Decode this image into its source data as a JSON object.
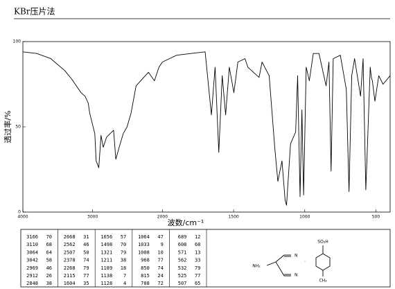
{
  "chart_data": {
    "type": "line",
    "title": "KBr压片法",
    "xlabel": "波数/cm⁻¹",
    "ylabel": "透过率/%",
    "xlim": [
      4000,
      400
    ],
    "x_scale_break": 2000,
    "xticks": [
      4000,
      3000,
      2000,
      1500,
      1000,
      500
    ],
    "ylim": [
      0,
      100
    ],
    "yticks": [
      0,
      50,
      100
    ],
    "color": "#000000",
    "x": [
      4000,
      3800,
      3600,
      3400,
      3300,
      3200,
      3166,
      3110,
      3064,
      3042,
      2969,
      2950,
      2912,
      2880,
      2848,
      2800,
      2700,
      2668,
      2620,
      2562,
      2507,
      2450,
      2378,
      2268,
      2200,
      2115,
      2050,
      2000,
      1900,
      1800,
      1700,
      1656,
      1630,
      1604,
      1580,
      1556,
      1530,
      1498,
      1470,
      1420,
      1400,
      1321,
      1300,
      1250,
      1211,
      1189,
      1160,
      1138,
      1128,
      1100,
      1064,
      1050,
      1033,
      1020,
      1008,
      990,
      968,
      940,
      900,
      850,
      830,
      815,
      800,
      750,
      708,
      689,
      670,
      650,
      608,
      590,
      571,
      562,
      540,
      532,
      525,
      507,
      480,
      450,
      420,
      400
    ],
    "values": [
      94,
      93,
      90,
      83,
      78,
      72,
      70,
      68,
      64,
      58,
      46,
      30,
      26,
      45,
      38,
      44,
      48,
      31,
      38,
      46,
      50,
      58,
      74,
      79,
      82,
      77,
      85,
      88,
      92,
      93,
      94,
      57,
      85,
      35,
      80,
      57,
      85,
      70,
      88,
      90,
      85,
      79,
      88,
      80,
      38,
      18,
      30,
      7,
      4,
      40,
      47,
      80,
      9,
      60,
      10,
      85,
      77,
      93,
      93,
      74,
      88,
      24,
      90,
      92,
      72,
      12,
      80,
      90,
      68,
      90,
      13,
      33,
      85,
      79,
      77,
      65,
      80,
      75,
      78,
      80
    ]
  },
  "peak_table": {
    "columns": [
      [
        [
          3166,
          70
        ],
        [
          3110,
          68
        ],
        [
          3064,
          64
        ],
        [
          3042,
          58
        ],
        [
          2969,
          46
        ],
        [
          2912,
          26
        ],
        [
          2848,
          38
        ]
      ],
      [
        [
          2668,
          31
        ],
        [
          2562,
          46
        ],
        [
          2507,
          50
        ],
        [
          2378,
          74
        ],
        [
          2268,
          79
        ],
        [
          2115,
          77
        ],
        [
          1604,
          35
        ]
      ],
      [
        [
          1656,
          57
        ],
        [
          1498,
          70
        ],
        [
          1321,
          79
        ],
        [
          1211,
          38
        ],
        [
          1189,
          18
        ],
        [
          1138,
          7
        ],
        [
          1128,
          4
        ]
      ],
      [
        [
          1064,
          47
        ],
        [
          1033,
          9
        ],
        [
          1008,
          10
        ],
        [
          968,
          77
        ],
        [
          850,
          74
        ],
        [
          815,
          24
        ],
        [
          708,
          72
        ]
      ],
      [
        [
          689,
          12
        ],
        [
          608,
          68
        ],
        [
          571,
          13
        ],
        [
          562,
          33
        ],
        [
          532,
          79
        ],
        [
          525,
          77
        ],
        [
          507,
          65
        ]
      ]
    ]
  },
  "structure": {
    "labels": [
      "NH₂",
      "N",
      "N",
      "SO₃H",
      "CH₃",
      "·"
    ]
  }
}
